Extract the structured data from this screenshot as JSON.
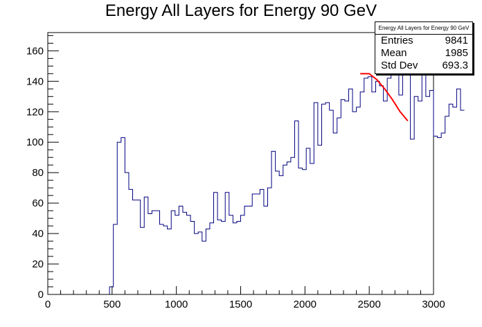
{
  "chart_data": {
    "type": "histogram",
    "title": "Energy All Layers for Energy 90 GeV",
    "xlim": [
      0,
      3000
    ],
    "ylim": [
      0,
      172
    ],
    "x_ticks": [
      0,
      500,
      1000,
      1500,
      2000,
      2500,
      3000
    ],
    "y_ticks": [
      0,
      20,
      40,
      60,
      80,
      100,
      120,
      140,
      160
    ],
    "bin_width": 30,
    "bins_start": 480,
    "counts": [
      5,
      46,
      100,
      103,
      80,
      69,
      62,
      62,
      44,
      64,
      53,
      55,
      55,
      46,
      45,
      43,
      55,
      52,
      58,
      54,
      52,
      48,
      40,
      41,
      35,
      43,
      47,
      67,
      49,
      48,
      67,
      52,
      47,
      48,
      52,
      58,
      58,
      66,
      66,
      69,
      58,
      70,
      94,
      81,
      78,
      85,
      87,
      90,
      114,
      83,
      82,
      96,
      86,
      126,
      98,
      125,
      126,
      121,
      106,
      116,
      128,
      127,
      135,
      120,
      123,
      133,
      142,
      143,
      133,
      140,
      137,
      127,
      142,
      149,
      150,
      131,
      157,
      152,
      102,
      130,
      127,
      147,
      130,
      134,
      104,
      103,
      106,
      117,
      125,
      123,
      135,
      121
    ],
    "fit_curve": {
      "color": "#ff0000",
      "points": [
        [
          2430,
          145
        ],
        [
          2500,
          145
        ],
        [
          2560,
          141
        ],
        [
          2620,
          135
        ],
        [
          2680,
          128
        ],
        [
          2740,
          120
        ],
        [
          2800,
          114
        ]
      ]
    },
    "stats_box": {
      "header": "Energy All Layers for Energy 90 GeV",
      "rows": [
        {
          "label": "Entries",
          "value": "9841"
        },
        {
          "label": "Mean",
          "value": "1985"
        },
        {
          "label": "Std Dev",
          "value": "693.3"
        }
      ]
    },
    "line_color": "#000080"
  }
}
